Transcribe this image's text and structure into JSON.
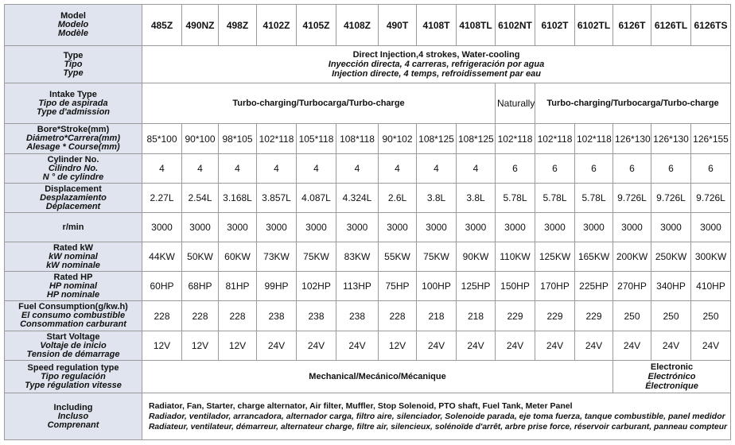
{
  "header": {
    "label": [
      "Model",
      "Modelo",
      "Modèle"
    ],
    "models": [
      "485Z",
      "490NZ",
      "498Z",
      "4102Z",
      "4105Z",
      "4108Z",
      "490T",
      "4108T",
      "4108TL",
      "6102NT",
      "6102T",
      "6102TL",
      "6126T",
      "6126TL",
      "6126TS"
    ]
  },
  "rows": [
    {
      "label": [
        "Type",
        "Tipo",
        "Type"
      ],
      "cells": [
        [
          "Direct Injection,4 strokes, Water-cooling",
          "Inyección directa, 4 carreras, refrigeración por agua",
          "Injection directe, 4 temps, refroidissement par eau"
        ]
      ]
    },
    {
      "label": [
        "Intake Type",
        "Tipo de aspirada",
        "Type d'admission"
      ],
      "cells": [
        "Turbo-charging/Turbocarga/Turbo-charge",
        "Naturally",
        "Turbo-charging/Turbocarga/Turbo-charge"
      ]
    },
    {
      "label": [
        "Bore*Stroke(mm)",
        "Diámetro*Carrera(mm)",
        "Alesage * Course(mm)"
      ],
      "cells": [
        "85*100",
        "90*100",
        "98*105",
        "102*118",
        "105*118",
        "108*118",
        "90*102",
        "108*125",
        "108*125",
        "102*118",
        "102*118",
        "102*118",
        "126*130",
        "126*130",
        "126*155"
      ]
    },
    {
      "label": [
        "Cylinder No.",
        "Cilindro No.",
        "N ° de cylindre"
      ],
      "cells": [
        4,
        4,
        4,
        4,
        4,
        4,
        4,
        4,
        4,
        6,
        6,
        6,
        6,
        6,
        6
      ]
    },
    {
      "label": [
        "Displacement",
        "Desplazamiento",
        "Déplacement"
      ],
      "cells": [
        "2.27L",
        "2.54L",
        "3.168L",
        "3.857L",
        "4.087L",
        "4.324L",
        "2.6L",
        "3.8L",
        "3.8L",
        "5.78L",
        "5.78L",
        "5.78L",
        "9.726L",
        "9.726L",
        "9.726L"
      ]
    },
    {
      "label": [
        "r/min"
      ],
      "cells": [
        3000,
        3000,
        3000,
        3000,
        3000,
        3000,
        3000,
        3000,
        3000,
        3000,
        3000,
        3000,
        3000,
        3000,
        3000
      ]
    },
    {
      "label": [
        "Rated kW",
        "kW nominal",
        "kW nominale"
      ],
      "cells": [
        "44KW",
        "50KW",
        "60KW",
        "73KW",
        "75KW",
        "83KW",
        "55KW",
        "75KW",
        "90KW",
        "110KW",
        "125KW",
        "165KW",
        "200KW",
        "250KW",
        "300KW"
      ]
    },
    {
      "label": [
        "Rated HP",
        "HP nominal",
        "HP nominale"
      ],
      "cells": [
        "60HP",
        "68HP",
        "81HP",
        "99HP",
        "102HP",
        "113HP",
        "75HP",
        "100HP",
        "125HP",
        "150HP",
        "170HP",
        "225HP",
        "270HP",
        "340HP",
        "410HP"
      ]
    },
    {
      "label": [
        "Fuel Consumption(g/kw.h)",
        "El consumo combustible",
        "Consommation carburant"
      ],
      "cells": [
        228,
        228,
        228,
        238,
        238,
        238,
        228,
        218,
        218,
        229,
        229,
        229,
        250,
        250,
        250
      ]
    },
    {
      "label": [
        "Start Voltage",
        "Voltaje de inicio",
        "Tension de démarrage"
      ],
      "cells": [
        "12V",
        "12V",
        "12V",
        "24V",
        "24V",
        "24V",
        "12V",
        "24V",
        "24V",
        "24V",
        "24V",
        "24V",
        "24V",
        "24V",
        "24V"
      ]
    },
    {
      "label": [
        "Speed regulation type",
        "Tipo regulación",
        "Type régulation vitesse"
      ],
      "cells": [
        "Mechanical/Mecánico/Mécanique",
        [
          "Electronic",
          "Electrónico",
          "Électronique"
        ]
      ]
    },
    {
      "label": [
        "Including",
        "Incluso",
        "Comprenant"
      ],
      "cells": [
        [
          "Radiator, Fan, Starter, charge alternator, Air filter, Muffler, Stop Solenoid, PTO shaft, Fuel Tank, Meter Panel",
          "Radiador, ventilador, arrancadora, alternador carga, filtro aire, silenciador, Solenoide parada, eje toma fuerza, tanque combustible, panel medidor",
          "Radiateur, ventilateur, démarreur, alternateur charge, filtre air, silencieux, solénoïde d'arrêt, arbre prise force, réservoir carburant, panneau compteur"
        ]
      ]
    }
  ]
}
